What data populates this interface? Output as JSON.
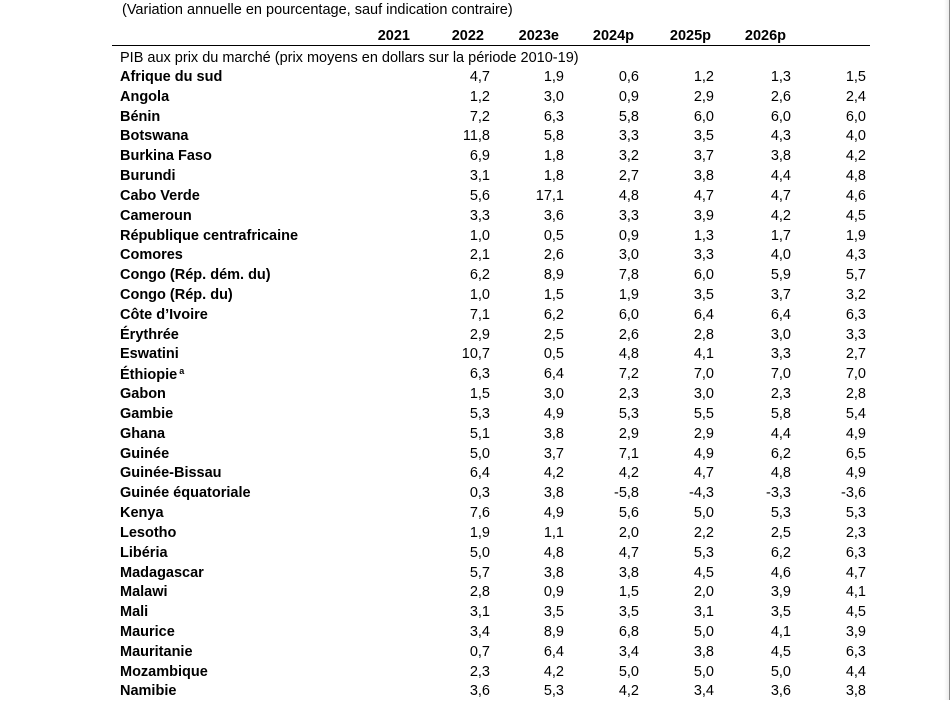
{
  "subtitle": "(Variation annuelle en pourcentage, sauf indication contraire)",
  "columns": [
    "2021",
    "2022",
    "2023e",
    "2024p",
    "2025p",
    "2026p"
  ],
  "section_label": "PIB aux prix du marché (prix moyens en dollars sur la période 2010-19)",
  "rows": [
    {
      "country": "Afrique du sud",
      "note": "",
      "values": [
        "4,7",
        "1,9",
        "0,6",
        "1,2",
        "1,3",
        "1,5"
      ]
    },
    {
      "country": "Angola",
      "note": "",
      "values": [
        "1,2",
        "3,0",
        "0,9",
        "2,9",
        "2,6",
        "2,4"
      ]
    },
    {
      "country": "Bénin",
      "note": "",
      "values": [
        "7,2",
        "6,3",
        "5,8",
        "6,0",
        "6,0",
        "6,0"
      ]
    },
    {
      "country": "Botswana",
      "note": "",
      "values": [
        "11,8",
        "5,8",
        "3,3",
        "3,5",
        "4,3",
        "4,0"
      ]
    },
    {
      "country": "Burkina Faso",
      "note": "",
      "values": [
        "6,9",
        "1,8",
        "3,2",
        "3,7",
        "3,8",
        "4,2"
      ]
    },
    {
      "country": "Burundi",
      "note": "",
      "values": [
        "3,1",
        "1,8",
        "2,7",
        "3,8",
        "4,4",
        "4,8"
      ]
    },
    {
      "country": "Cabo Verde",
      "note": "",
      "values": [
        "5,6",
        "17,1",
        "4,8",
        "4,7",
        "4,7",
        "4,6"
      ]
    },
    {
      "country": "Cameroun",
      "note": "",
      "values": [
        "3,3",
        "3,6",
        "3,3",
        "3,9",
        "4,2",
        "4,5"
      ]
    },
    {
      "country": "République centrafricaine",
      "note": "",
      "values": [
        "1,0",
        "0,5",
        "0,9",
        "1,3",
        "1,7",
        "1,9"
      ]
    },
    {
      "country": "Comores",
      "note": "",
      "values": [
        "2,1",
        "2,6",
        "3,0",
        "3,3",
        "4,0",
        "4,3"
      ]
    },
    {
      "country": "Congo (Rép. dém. du)",
      "note": "",
      "values": [
        "6,2",
        "8,9",
        "7,8",
        "6,0",
        "5,9",
        "5,7"
      ]
    },
    {
      "country": "Congo (Rép. du)",
      "note": "",
      "values": [
        "1,0",
        "1,5",
        "1,9",
        "3,5",
        "3,7",
        "3,2"
      ]
    },
    {
      "country": "Côte d’Ivoire",
      "note": "",
      "values": [
        "7,1",
        "6,2",
        "6,0",
        "6,4",
        "6,4",
        "6,3"
      ]
    },
    {
      "country": "Érythrée",
      "note": "",
      "values": [
        "2,9",
        "2,5",
        "2,6",
        "2,8",
        "3,0",
        "3,3"
      ]
    },
    {
      "country": "Eswatini",
      "note": "",
      "values": [
        "10,7",
        "0,5",
        "4,8",
        "4,1",
        "3,3",
        "2,7"
      ]
    },
    {
      "country": "Éthiopie",
      "note": "a",
      "values": [
        "6,3",
        "6,4",
        "7,2",
        "7,0",
        "7,0",
        "7,0"
      ]
    },
    {
      "country": "Gabon",
      "note": "",
      "values": [
        "1,5",
        "3,0",
        "2,3",
        "3,0",
        "2,3",
        "2,8"
      ]
    },
    {
      "country": "Gambie",
      "note": "",
      "values": [
        "5,3",
        "4,9",
        "5,3",
        "5,5",
        "5,8",
        "5,4"
      ]
    },
    {
      "country": "Ghana",
      "note": "",
      "values": [
        "5,1",
        "3,8",
        "2,9",
        "2,9",
        "4,4",
        "4,9"
      ]
    },
    {
      "country": "Guinée",
      "note": "",
      "values": [
        "5,0",
        "3,7",
        "7,1",
        "4,9",
        "6,2",
        "6,5"
      ]
    },
    {
      "country": "Guinée-Bissau",
      "note": "",
      "values": [
        "6,4",
        "4,2",
        "4,2",
        "4,7",
        "4,8",
        "4,9"
      ]
    },
    {
      "country": "Guinée équatoriale",
      "note": "",
      "values": [
        "0,3",
        "3,8",
        "-5,8",
        "-4,3",
        "-3,3",
        "-3,6"
      ]
    },
    {
      "country": "Kenya",
      "note": "",
      "values": [
        "7,6",
        "4,9",
        "5,6",
        "5,0",
        "5,3",
        "5,3"
      ]
    },
    {
      "country": "Lesotho",
      "note": "",
      "values": [
        "1,9",
        "1,1",
        "2,0",
        "2,2",
        "2,5",
        "2,3"
      ]
    },
    {
      "country": "Libéria",
      "note": "",
      "values": [
        "5,0",
        "4,8",
        "4,7",
        "5,3",
        "6,2",
        "6,3"
      ]
    },
    {
      "country": "Madagascar",
      "note": "",
      "values": [
        "5,7",
        "3,8",
        "3,8",
        "4,5",
        "4,6",
        "4,7"
      ]
    },
    {
      "country": "Malawi",
      "note": "",
      "values": [
        "2,8",
        "0,9",
        "1,5",
        "2,0",
        "3,9",
        "4,1"
      ]
    },
    {
      "country": "Mali",
      "note": "",
      "values": [
        "3,1",
        "3,5",
        "3,5",
        "3,1",
        "3,5",
        "4,5"
      ]
    },
    {
      "country": "Maurice",
      "note": "",
      "values": [
        "3,4",
        "8,9",
        "6,8",
        "5,0",
        "4,1",
        "3,9"
      ]
    },
    {
      "country": "Mauritanie",
      "note": "",
      "values": [
        "0,7",
        "6,4",
        "3,4",
        "3,8",
        "4,5",
        "6,3"
      ]
    },
    {
      "country": "Mozambique",
      "note": "",
      "values": [
        "2,3",
        "4,2",
        "5,0",
        "5,0",
        "5,0",
        "4,4"
      ]
    },
    {
      "country": "Namibie",
      "note": "",
      "values": [
        "3,6",
        "5,3",
        "4,2",
        "3,4",
        "3,6",
        "3,8"
      ]
    }
  ]
}
